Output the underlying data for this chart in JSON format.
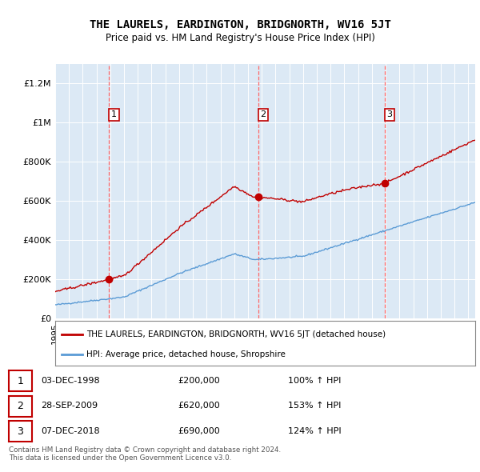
{
  "title": "THE LAURELS, EARDINGTON, BRIDGNORTH, WV16 5JT",
  "subtitle": "Price paid vs. HM Land Registry's House Price Index (HPI)",
  "plot_bg_color": "#dce9f5",
  "hpi_color": "#5b9bd5",
  "price_color": "#c00000",
  "ylim_min": 0,
  "ylim_max": 1300000,
  "ytick_labels": [
    "£0",
    "£200K",
    "£400K",
    "£600K",
    "£800K",
    "£1M",
    "£1.2M"
  ],
  "ytick_values": [
    0,
    200000,
    400000,
    600000,
    800000,
    1000000,
    1200000
  ],
  "sales": [
    {
      "date_num": 1998.92,
      "price": 200000,
      "label": "1"
    },
    {
      "date_num": 2009.74,
      "price": 620000,
      "label": "2"
    },
    {
      "date_num": 2018.93,
      "price": 690000,
      "label": "3"
    }
  ],
  "legend_entries": [
    {
      "color": "#c00000",
      "label": "THE LAURELS, EARDINGTON, BRIDGNORTH, WV16 5JT (detached house)"
    },
    {
      "color": "#5b9bd5",
      "label": "HPI: Average price, detached house, Shropshire"
    }
  ],
  "table_rows": [
    {
      "num": "1",
      "date": "03-DEC-1998",
      "price": "£200,000",
      "change": "100% ↑ HPI"
    },
    {
      "num": "2",
      "date": "28-SEP-2009",
      "price": "£620,000",
      "change": "153% ↑ HPI"
    },
    {
      "num": "3",
      "date": "07-DEC-2018",
      "price": "£690,000",
      "change": "124% ↑ HPI"
    }
  ],
  "footer": "Contains HM Land Registry data © Crown copyright and database right 2024.\nThis data is licensed under the Open Government Licence v3.0."
}
